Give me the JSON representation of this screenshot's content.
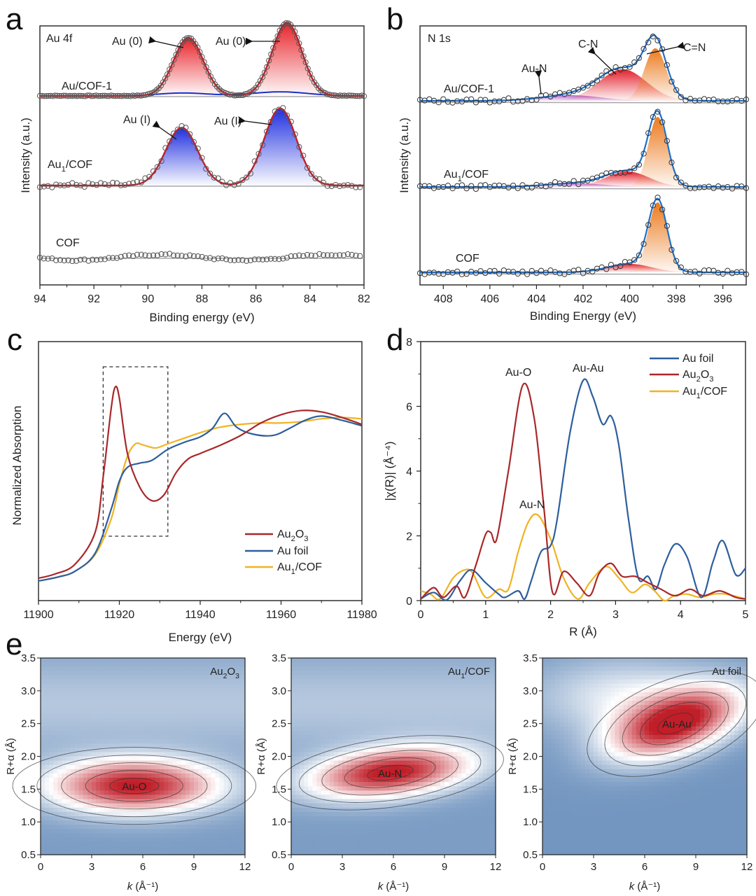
{
  "figure": {
    "panels": [
      "a",
      "b",
      "c",
      "d",
      "e"
    ]
  },
  "chart_data": [
    {
      "id": "a",
      "type": "line",
      "title": "Au 4f",
      "xlabel": "Binding energy (eV)",
      "ylabel": "Intensity (a.u.)",
      "xlim": [
        94,
        82
      ],
      "xticks": [
        94,
        92,
        90,
        88,
        86,
        84,
        82
      ],
      "series": [
        {
          "name": "Au/COF-1",
          "peaks": [
            {
              "center": 88.5,
              "height": 1.0,
              "fwhm": 1.3,
              "label": "Au (0)",
              "color": "#e02020"
            },
            {
              "center": 84.85,
              "height": 1.26,
              "fwhm": 1.3,
              "label": "Au (0)",
              "color": "#e02020"
            }
          ],
          "minor_component": {
            "label": "Au (I)",
            "color": "#1a2fd0"
          },
          "offset": 2.0
        },
        {
          "name": "Au1/COF",
          "peaks": [
            {
              "center": 88.75,
              "height": 0.75,
              "fwhm": 1.4,
              "label": "Au (I)",
              "color": "#1a2fd0"
            },
            {
              "center": 85.1,
              "height": 1.0,
              "fwhm": 1.4,
              "label": "Au (I)",
              "color": "#1a2fd0"
            }
          ],
          "offset": 1.0
        },
        {
          "name": "COF",
          "peaks": [],
          "offset": 0.0
        }
      ],
      "annotations": [
        "Au (0)",
        "Au (0)",
        "Au (I)",
        "Au (I)"
      ],
      "labels": {
        "s1": "Au/COF-1",
        "s2": "Au",
        "s2sub": "1",
        "s2rest": "/COF",
        "s3": "COF",
        "title": "Au 4f"
      }
    },
    {
      "id": "b",
      "type": "line",
      "title": "N 1s",
      "xlabel": "Binding Energy (eV)",
      "ylabel": "Intensity (a.u.)",
      "xlim": [
        409,
        395
      ],
      "xticks": [
        408,
        406,
        404,
        402,
        400,
        398,
        396
      ],
      "components": [
        {
          "name": "Au-N",
          "color": "#b36bc8"
        },
        {
          "name": "C-N",
          "color": "#e02020"
        },
        {
          "name": "C=N",
          "color": "#e87a20"
        }
      ],
      "series": [
        {
          "name": "Au/COF-1",
          "peaks": [
            {
              "comp": "Au-N",
              "center": 402.5,
              "height": 0.08,
              "fwhm": 3.0
            },
            {
              "comp": "C-N",
              "center": 400.3,
              "height": 0.45,
              "fwhm": 2.4
            },
            {
              "comp": "C=N",
              "center": 398.9,
              "height": 0.75,
              "fwhm": 1.1
            }
          ],
          "offset": 2.0
        },
        {
          "name": "Au1/COF",
          "peaks": [
            {
              "comp": "Au-N",
              "center": 402.3,
              "height": 0.05,
              "fwhm": 3.0
            },
            {
              "comp": "C-N",
              "center": 400.1,
              "height": 0.22,
              "fwhm": 2.2
            },
            {
              "comp": "C=N",
              "center": 398.8,
              "height": 1.0,
              "fwhm": 0.95
            }
          ],
          "offset": 1.0
        },
        {
          "name": "COF",
          "peaks": [
            {
              "comp": "C-N",
              "center": 400.0,
              "height": 0.12,
              "fwhm": 2.2
            },
            {
              "comp": "C=N",
              "center": 398.8,
              "height": 1.0,
              "fwhm": 0.95
            }
          ],
          "offset": 0.0
        }
      ],
      "labels": {
        "s1": "Au/COF-1",
        "s2": "Au",
        "s2sub": "1",
        "s2rest": "/COF",
        "s3": "COF",
        "title": "N 1s",
        "auN": "Au-N",
        "cN": "C-N",
        "ceqN": "C=N"
      }
    },
    {
      "id": "c",
      "type": "line",
      "xlabel": "Energy (eV)",
      "ylabel": "Normalized Absorption",
      "xlim": [
        11900,
        11980
      ],
      "xticks": [
        11900,
        11920,
        11940,
        11960,
        11980
      ],
      "legend": "lower-right",
      "highlight_box": {
        "x": [
          11916,
          11932
        ]
      },
      "series": [
        {
          "name": "Au2O3",
          "color": "#a8282a",
          "x": [
            11900,
            11904,
            11909,
            11914,
            11916,
            11918,
            11919,
            11920,
            11922,
            11925,
            11928,
            11931,
            11934,
            11937,
            11940,
            11945,
            11950,
            11955,
            11960,
            11965,
            11970,
            11975,
            11980
          ],
          "y": [
            0.02,
            0.05,
            0.12,
            0.35,
            0.75,
            1.25,
            1.4,
            1.32,
            0.92,
            0.68,
            0.58,
            0.62,
            0.78,
            0.88,
            0.92,
            0.98,
            1.05,
            1.14,
            1.2,
            1.23,
            1.22,
            1.18,
            1.13
          ]
        },
        {
          "name": "Au foil",
          "color": "#2d5e9e",
          "x": [
            11900,
            11905,
            11909,
            11914,
            11918,
            11920,
            11922,
            11925,
            11928,
            11932,
            11936,
            11940,
            11943,
            11946,
            11949,
            11953,
            11958,
            11962,
            11966,
            11970,
            11975,
            11980
          ],
          "y": [
            0.0,
            0.03,
            0.07,
            0.2,
            0.52,
            0.72,
            0.82,
            0.85,
            0.87,
            0.95,
            1.0,
            1.04,
            1.1,
            1.21,
            1.11,
            1.06,
            1.05,
            1.1,
            1.16,
            1.19,
            1.16,
            1.12
          ]
        },
        {
          "name": "Au1/COF",
          "color": "#f0b323",
          "x": [
            11900,
            11905,
            11909,
            11914,
            11918,
            11920,
            11922,
            11924,
            11926,
            11929,
            11932,
            11936,
            11940,
            11945,
            11950,
            11955,
            11960,
            11965,
            11970,
            11975,
            11980
          ],
          "y": [
            0.0,
            0.03,
            0.07,
            0.19,
            0.45,
            0.7,
            0.9,
            0.99,
            0.98,
            0.96,
            0.99,
            1.03,
            1.07,
            1.11,
            1.13,
            1.14,
            1.14,
            1.15,
            1.17,
            1.18,
            1.17
          ]
        }
      ],
      "legend_labels": [
        {
          "main": "Au",
          "sub": "2",
          "rest": "O",
          "sub2": "3"
        },
        {
          "main": "Au foil"
        },
        {
          "main": "Au",
          "sub": "1",
          "rest": "/COF"
        }
      ]
    },
    {
      "id": "d",
      "type": "line",
      "xlabel": "R (Å)",
      "ylabel": "|χ(R)| (Å⁻⁴)",
      "xlim": [
        0,
        5
      ],
      "ylim": [
        0,
        8
      ],
      "xticks": [
        0,
        1,
        2,
        3,
        4,
        5
      ],
      "yticks": [
        0,
        2,
        4,
        6,
        8
      ],
      "legend": "top-right",
      "annotations": [
        {
          "text": "Au-O",
          "color": "#a8282a"
        },
        {
          "text": "Au-Au",
          "color": "#2d5e9e"
        },
        {
          "text": "Au-N",
          "color": "#f0b323"
        }
      ],
      "series": [
        {
          "name": "Au foil",
          "color": "#2d5e9e",
          "x": [
            0,
            0.2,
            0.4,
            0.6,
            0.78,
            1.0,
            1.2,
            1.3,
            1.5,
            1.6,
            1.7,
            1.85,
            2.0,
            2.1,
            2.3,
            2.5,
            2.65,
            2.8,
            2.93,
            3.05,
            3.2,
            3.35,
            3.5,
            3.62,
            3.75,
            3.92,
            4.1,
            4.32,
            4.5,
            4.65,
            4.85,
            5.0
          ],
          "y": [
            0.05,
            0.25,
            0.02,
            0.6,
            0.95,
            0.55,
            0.2,
            0.1,
            0.3,
            0.05,
            0.6,
            1.5,
            1.7,
            2.5,
            5.2,
            6.8,
            6.3,
            5.45,
            5.7,
            4.8,
            2.5,
            0.7,
            0.75,
            0.35,
            1.1,
            1.75,
            1.35,
            0.1,
            1.2,
            1.85,
            0.8,
            1.0
          ]
        },
        {
          "name": "Au2O3",
          "color": "#a8282a",
          "x": [
            0,
            0.2,
            0.35,
            0.55,
            0.68,
            0.85,
            1.0,
            1.08,
            1.17,
            1.35,
            1.57,
            1.75,
            1.9,
            2.03,
            2.2,
            2.4,
            2.6,
            2.75,
            2.93,
            3.1,
            3.3,
            3.5,
            3.7,
            3.92,
            4.15,
            4.35,
            4.6,
            4.85,
            5.0
          ],
          "y": [
            0.05,
            0.4,
            0.1,
            0.45,
            0.1,
            1.1,
            2.05,
            2.1,
            1.9,
            4.0,
            6.65,
            5.6,
            2.8,
            0.25,
            0.9,
            0.55,
            0.15,
            0.85,
            1.15,
            0.75,
            0.75,
            0.55,
            0.35,
            0.15,
            0.35,
            0.15,
            0.3,
            0.1,
            0.05
          ]
        },
        {
          "name": "Au1/COF",
          "color": "#f0b323",
          "x": [
            0,
            0.15,
            0.3,
            0.5,
            0.68,
            0.8,
            1.0,
            1.2,
            1.35,
            1.5,
            1.65,
            1.8,
            2.0,
            2.2,
            2.42,
            2.6,
            2.85,
            3.05,
            3.25,
            3.45,
            3.6,
            3.75,
            3.9,
            4.1,
            4.3,
            4.5,
            4.7,
            5.0
          ],
          "y": [
            0.3,
            0.2,
            0.05,
            0.7,
            0.95,
            0.85,
            0.1,
            0.35,
            0.35,
            1.5,
            2.4,
            2.65,
            1.9,
            0.7,
            0.05,
            0.55,
            1.05,
            0.7,
            0.25,
            0.5,
            0.3,
            0.0,
            0.15,
            0.2,
            0.1,
            0.2,
            0.2,
            0.05
          ]
        }
      ],
      "legend_labels": [
        {
          "main": "Au foil"
        },
        {
          "main": "Au",
          "sub": "2",
          "rest": "O",
          "sub2": "3"
        },
        {
          "main": "Au",
          "sub": "1",
          "rest": "/COF"
        }
      ]
    },
    {
      "id": "e",
      "type": "heatmap",
      "xlabel": "k (Å⁻¹)",
      "ylabel": "R+α (Å)",
      "xlim": [
        0,
        12
      ],
      "ylim": [
        0.5,
        3.5
      ],
      "xticks": [
        0,
        3,
        6,
        9,
        12
      ],
      "yticks": [
        0.5,
        1.0,
        1.5,
        2.0,
        2.5,
        3.0,
        3.5
      ],
      "maps": [
        {
          "name": "Au2O3",
          "label_main": "Au",
          "label_sub": "2",
          "label_rest": "O",
          "label_sub2": "3",
          "peak_label": "Au-O",
          "peak": {
            "k": 5.5,
            "r": 1.55,
            "sk": 3.4,
            "sr": 0.28,
            "tilt": 0.0
          }
        },
        {
          "name": "Au1/COF",
          "label_main": "Au",
          "label_sub": "1",
          "label_rest": "/COF",
          "peak_label": "Au-N",
          "peak": {
            "k": 5.8,
            "r": 1.75,
            "sk": 3.2,
            "sr": 0.25,
            "tilt": 0.025
          }
        },
        {
          "name": "Au foil",
          "label_main": "Au foil",
          "peak_label": "Au-Au",
          "peak": {
            "k": 7.8,
            "r": 2.5,
            "sk": 2.6,
            "sr": 0.32,
            "tilt": 0.07
          }
        }
      ]
    }
  ]
}
